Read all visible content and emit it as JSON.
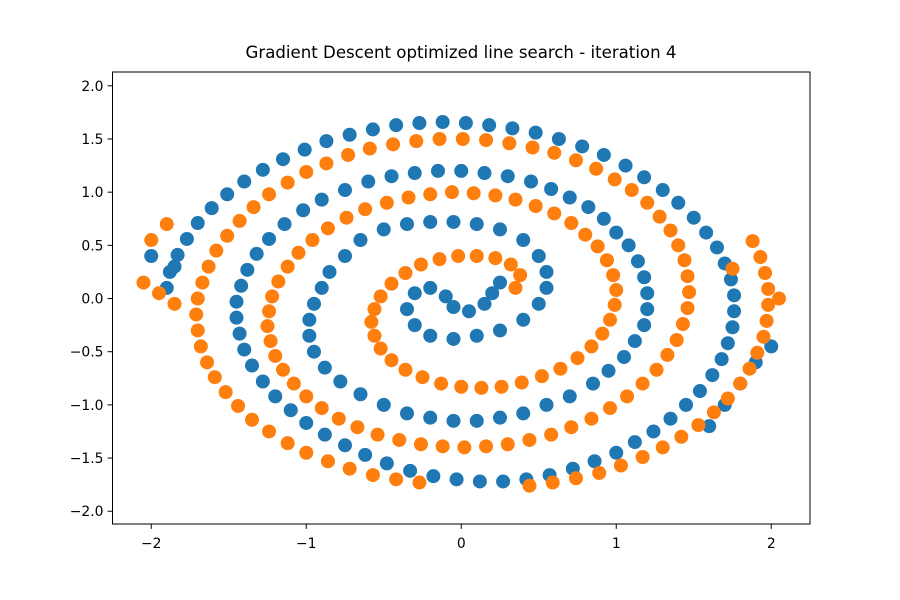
{
  "chart_data": {
    "type": "scatter",
    "title": "Gradient Descent optimized line search - iteration 4",
    "xlabel": "",
    "ylabel": "",
    "xlim": [
      -2.25,
      2.25
    ],
    "ylim": [
      -2.12,
      2.13
    ],
    "x_ticks": [
      -2,
      -1,
      0,
      1,
      2
    ],
    "x_tick_labels": [
      "−2",
      "−1",
      "0",
      "1",
      "2"
    ],
    "y_ticks": [
      2.0,
      1.5,
      1.0,
      0.5,
      0.0,
      -0.5,
      -1.0,
      -1.5,
      -2.0
    ],
    "y_tick_labels": [
      "2.0",
      "1.5",
      "1.0",
      "0.5",
      "0.0",
      "−0.5",
      "−1.0",
      "−1.5",
      "−2.0"
    ],
    "grid": false,
    "series": [
      {
        "color": "#1f77b4",
        "description_points": "blue class",
        "points": [
          [
            0.25,
            0.15
          ],
          [
            0.2,
            0.05
          ],
          [
            0.15,
            -0.05
          ],
          [
            0.05,
            -0.12
          ],
          [
            -0.05,
            -0.08
          ],
          [
            -0.1,
            0.02
          ],
          [
            -0.2,
            0.1
          ],
          [
            -0.3,
            0.05
          ],
          [
            -0.35,
            -0.1
          ],
          [
            -0.3,
            -0.25
          ],
          [
            -0.2,
            -0.35
          ],
          [
            -0.05,
            -0.38
          ],
          [
            0.1,
            -0.35
          ],
          [
            0.25,
            -0.3
          ],
          [
            0.4,
            -0.2
          ],
          [
            0.5,
            -0.05
          ],
          [
            0.55,
            0.1
          ],
          [
            0.55,
            0.25
          ],
          [
            0.5,
            0.4
          ],
          [
            0.4,
            0.55
          ],
          [
            0.25,
            0.65
          ],
          [
            0.1,
            0.7
          ],
          [
            -0.05,
            0.72
          ],
          [
            -0.2,
            0.72
          ],
          [
            -0.35,
            0.7
          ],
          [
            -0.5,
            0.65
          ],
          [
            -0.65,
            0.55
          ],
          [
            -0.75,
            0.4
          ],
          [
            -0.85,
            0.25
          ],
          [
            -0.9,
            0.1
          ],
          [
            -0.95,
            -0.05
          ],
          [
            -0.98,
            -0.2
          ],
          [
            -0.98,
            -0.35
          ],
          [
            -0.95,
            -0.5
          ],
          [
            -0.88,
            -0.65
          ],
          [
            -0.78,
            -0.78
          ],
          [
            -0.65,
            -0.9
          ],
          [
            -0.5,
            -1.0
          ],
          [
            -0.35,
            -1.08
          ],
          [
            -0.2,
            -1.12
          ],
          [
            -0.05,
            -1.15
          ],
          [
            0.1,
            -1.15
          ],
          [
            0.25,
            -1.12
          ],
          [
            0.4,
            -1.08
          ],
          [
            0.55,
            -1.0
          ],
          [
            0.7,
            -0.92
          ],
          [
            0.85,
            -0.8
          ],
          [
            0.95,
            -0.68
          ],
          [
            1.05,
            -0.55
          ],
          [
            1.12,
            -0.4
          ],
          [
            1.18,
            -0.25
          ],
          [
            1.2,
            -0.1
          ],
          [
            1.2,
            0.05
          ],
          [
            1.18,
            0.2
          ],
          [
            1.14,
            0.35
          ],
          [
            1.08,
            0.5
          ],
          [
            1.0,
            0.62
          ],
          [
            0.92,
            0.75
          ],
          [
            0.82,
            0.86
          ],
          [
            0.7,
            0.95
          ],
          [
            0.58,
            1.03
          ],
          [
            0.45,
            1.1
          ],
          [
            0.3,
            1.15
          ],
          [
            0.15,
            1.18
          ],
          [
            0.0,
            1.2
          ],
          [
            -0.15,
            1.2
          ],
          [
            -0.3,
            1.18
          ],
          [
            -0.45,
            1.15
          ],
          [
            -0.6,
            1.1
          ],
          [
            -0.75,
            1.02
          ],
          [
            -0.9,
            0.93
          ],
          [
            -1.02,
            0.83
          ],
          [
            -1.14,
            0.7
          ],
          [
            -1.24,
            0.56
          ],
          [
            -1.32,
            0.42
          ],
          [
            -1.38,
            0.27
          ],
          [
            -1.42,
            0.12
          ],
          [
            -1.45,
            -0.03
          ],
          [
            -1.45,
            -0.18
          ],
          [
            -1.43,
            -0.33
          ],
          [
            -1.4,
            -0.48
          ],
          [
            -1.35,
            -0.63
          ],
          [
            -1.28,
            -0.78
          ],
          [
            -1.2,
            -0.92
          ],
          [
            -1.1,
            -1.05
          ],
          [
            -1.0,
            -1.17
          ],
          [
            -0.88,
            -1.28
          ],
          [
            -0.75,
            -1.38
          ],
          [
            -0.62,
            -1.47
          ],
          [
            -0.48,
            -1.55
          ],
          [
            -0.33,
            -1.62
          ],
          [
            -0.18,
            -1.67
          ],
          [
            -0.03,
            -1.7
          ],
          [
            0.12,
            -1.72
          ],
          [
            0.27,
            -1.72
          ],
          [
            0.42,
            -1.7
          ],
          [
            0.57,
            -1.66
          ],
          [
            0.72,
            -1.6
          ],
          [
            0.86,
            -1.53
          ],
          [
            1.0,
            -1.45
          ],
          [
            1.12,
            -1.35
          ],
          [
            1.24,
            -1.25
          ],
          [
            1.35,
            -1.13
          ],
          [
            1.45,
            -1.0
          ],
          [
            1.54,
            -0.87
          ],
          [
            1.62,
            -0.72
          ],
          [
            1.68,
            -0.57
          ],
          [
            1.72,
            -0.42
          ],
          [
            1.75,
            -0.27
          ],
          [
            1.76,
            -0.12
          ],
          [
            1.76,
            0.03
          ],
          [
            1.74,
            0.18
          ],
          [
            1.7,
            0.33
          ],
          [
            1.65,
            0.48
          ],
          [
            1.58,
            0.62
          ],
          [
            1.5,
            0.76
          ],
          [
            1.4,
            0.9
          ],
          [
            1.3,
            1.02
          ],
          [
            1.18,
            1.14
          ],
          [
            1.06,
            1.25
          ],
          [
            0.92,
            1.35
          ],
          [
            0.78,
            1.43
          ],
          [
            0.63,
            1.5
          ],
          [
            0.48,
            1.56
          ],
          [
            0.33,
            1.6
          ],
          [
            0.18,
            1.63
          ],
          [
            0.03,
            1.65
          ],
          [
            -0.12,
            1.66
          ],
          [
            -0.27,
            1.65
          ],
          [
            -0.42,
            1.63
          ],
          [
            -0.57,
            1.59
          ],
          [
            -0.72,
            1.54
          ],
          [
            -0.87,
            1.48
          ],
          [
            -1.01,
            1.4
          ],
          [
            -1.15,
            1.31
          ],
          [
            -1.28,
            1.21
          ],
          [
            -1.4,
            1.1
          ],
          [
            -1.51,
            0.98
          ],
          [
            -1.61,
            0.85
          ],
          [
            -1.7,
            0.71
          ],
          [
            -1.77,
            0.56
          ],
          [
            -1.83,
            0.41
          ],
          [
            -1.88,
            0.25
          ],
          [
            -1.9,
            0.1
          ],
          [
            -2.0,
            0.4
          ],
          [
            -1.85,
            0.3
          ],
          [
            1.9,
            -0.6
          ],
          [
            1.8,
            -0.8
          ],
          [
            1.7,
            -1.0
          ],
          [
            1.6,
            -1.2
          ],
          [
            2.0,
            -0.45
          ]
        ]
      },
      {
        "color": "#ff7f0e",
        "description_points": "orange class",
        "points": [
          [
            0.35,
            0.1
          ],
          [
            0.38,
            0.22
          ],
          [
            0.32,
            0.32
          ],
          [
            0.22,
            0.38
          ],
          [
            0.1,
            0.4
          ],
          [
            -0.02,
            0.4
          ],
          [
            -0.14,
            0.37
          ],
          [
            -0.26,
            0.32
          ],
          [
            -0.36,
            0.24
          ],
          [
            -0.45,
            0.14
          ],
          [
            -0.52,
            0.02
          ],
          [
            -0.56,
            -0.1
          ],
          [
            -0.58,
            -0.22
          ],
          [
            -0.56,
            -0.35
          ],
          [
            -0.52,
            -0.47
          ],
          [
            -0.45,
            -0.58
          ],
          [
            -0.36,
            -0.67
          ],
          [
            -0.25,
            -0.74
          ],
          [
            -0.13,
            -0.8
          ],
          [
            0.0,
            -0.83
          ],
          [
            0.13,
            -0.84
          ],
          [
            0.26,
            -0.83
          ],
          [
            0.39,
            -0.79
          ],
          [
            0.52,
            -0.73
          ],
          [
            0.64,
            -0.66
          ],
          [
            0.75,
            -0.56
          ],
          [
            0.84,
            -0.45
          ],
          [
            0.91,
            -0.33
          ],
          [
            0.96,
            -0.2
          ],
          [
            0.99,
            -0.06
          ],
          [
            1.0,
            0.08
          ],
          [
            0.98,
            0.22
          ],
          [
            0.94,
            0.36
          ],
          [
            0.88,
            0.49
          ],
          [
            0.8,
            0.6
          ],
          [
            0.71,
            0.71
          ],
          [
            0.6,
            0.8
          ],
          [
            0.48,
            0.87
          ],
          [
            0.35,
            0.93
          ],
          [
            0.22,
            0.97
          ],
          [
            0.08,
            0.99
          ],
          [
            -0.06,
            1.0
          ],
          [
            -0.2,
            0.98
          ],
          [
            -0.34,
            0.95
          ],
          [
            -0.48,
            0.9
          ],
          [
            -0.62,
            0.84
          ],
          [
            -0.74,
            0.76
          ],
          [
            -0.86,
            0.66
          ],
          [
            -0.96,
            0.55
          ],
          [
            -1.05,
            0.43
          ],
          [
            -1.12,
            0.3
          ],
          [
            -1.18,
            0.16
          ],
          [
            -1.22,
            0.02
          ],
          [
            -1.24,
            -0.12
          ],
          [
            -1.25,
            -0.26
          ],
          [
            -1.23,
            -0.4
          ],
          [
            -1.2,
            -0.54
          ],
          [
            -1.15,
            -0.67
          ],
          [
            -1.08,
            -0.8
          ],
          [
            -1.0,
            -0.92
          ],
          [
            -0.9,
            -1.03
          ],
          [
            -0.79,
            -1.13
          ],
          [
            -0.67,
            -1.21
          ],
          [
            -0.54,
            -1.28
          ],
          [
            -0.4,
            -1.33
          ],
          [
            -0.26,
            -1.37
          ],
          [
            -0.12,
            -1.39
          ],
          [
            0.02,
            -1.4
          ],
          [
            0.16,
            -1.39
          ],
          [
            0.3,
            -1.37
          ],
          [
            0.44,
            -1.33
          ],
          [
            0.58,
            -1.28
          ],
          [
            0.71,
            -1.21
          ],
          [
            0.84,
            -1.13
          ],
          [
            0.96,
            -1.03
          ],
          [
            1.07,
            -0.92
          ],
          [
            1.17,
            -0.8
          ],
          [
            1.26,
            -0.67
          ],
          [
            1.33,
            -0.53
          ],
          [
            1.39,
            -0.39
          ],
          [
            1.43,
            -0.24
          ],
          [
            1.46,
            -0.09
          ],
          [
            1.47,
            0.06
          ],
          [
            1.46,
            0.21
          ],
          [
            1.44,
            0.36
          ],
          [
            1.4,
            0.5
          ],
          [
            1.35,
            0.64
          ],
          [
            1.28,
            0.77
          ],
          [
            1.2,
            0.9
          ],
          [
            1.1,
            1.02
          ],
          [
            0.99,
            1.12
          ],
          [
            0.87,
            1.22
          ],
          [
            0.74,
            1.3
          ],
          [
            0.6,
            1.37
          ],
          [
            0.46,
            1.42
          ],
          [
            0.31,
            1.46
          ],
          [
            0.16,
            1.49
          ],
          [
            0.01,
            1.5
          ],
          [
            -0.14,
            1.5
          ],
          [
            -0.29,
            1.48
          ],
          [
            -0.44,
            1.45
          ],
          [
            -0.59,
            1.41
          ],
          [
            -0.73,
            1.35
          ],
          [
            -0.87,
            1.27
          ],
          [
            -1.0,
            1.19
          ],
          [
            -1.12,
            1.09
          ],
          [
            -1.24,
            0.98
          ],
          [
            -1.34,
            0.86
          ],
          [
            -1.43,
            0.73
          ],
          [
            -1.51,
            0.59
          ],
          [
            -1.58,
            0.45
          ],
          [
            -1.63,
            0.3
          ],
          [
            -1.67,
            0.15
          ],
          [
            -1.7,
            0.0
          ],
          [
            -1.71,
            -0.15
          ],
          [
            -1.7,
            -0.3
          ],
          [
            -1.68,
            -0.45
          ],
          [
            -1.64,
            -0.6
          ],
          [
            -1.59,
            -0.74
          ],
          [
            -1.52,
            -0.88
          ],
          [
            -1.44,
            -1.01
          ],
          [
            -1.35,
            -1.14
          ],
          [
            -1.24,
            -1.25
          ],
          [
            -1.12,
            -1.36
          ],
          [
            -1.0,
            -1.45
          ],
          [
            -0.86,
            -1.53
          ],
          [
            -0.72,
            -1.6
          ],
          [
            -0.57,
            -1.66
          ],
          [
            -0.42,
            -1.7
          ],
          [
            -0.27,
            -1.73
          ],
          [
            0.44,
            -1.76
          ],
          [
            0.59,
            -1.73
          ],
          [
            0.74,
            -1.69
          ],
          [
            0.89,
            -1.64
          ],
          [
            1.03,
            -1.57
          ],
          [
            1.17,
            -1.49
          ],
          [
            1.3,
            -1.4
          ],
          [
            1.42,
            -1.3
          ],
          [
            1.53,
            -1.19
          ],
          [
            1.63,
            -1.07
          ],
          [
            1.72,
            -0.94
          ],
          [
            1.8,
            -0.8
          ],
          [
            1.86,
            -0.66
          ],
          [
            1.91,
            -0.51
          ],
          [
            1.95,
            -0.36
          ],
          [
            1.97,
            -0.21
          ],
          [
            1.98,
            -0.06
          ],
          [
            1.98,
            0.09
          ],
          [
            1.96,
            0.24
          ],
          [
            1.93,
            0.39
          ],
          [
            1.88,
            0.54
          ],
          [
            -1.9,
            0.7
          ],
          [
            -2.0,
            0.55
          ],
          [
            -1.95,
            0.05
          ],
          [
            -1.85,
            -0.05
          ],
          [
            -2.05,
            0.15
          ],
          [
            2.05,
            0.0
          ],
          [
            1.75,
            0.28
          ]
        ]
      }
    ]
  }
}
